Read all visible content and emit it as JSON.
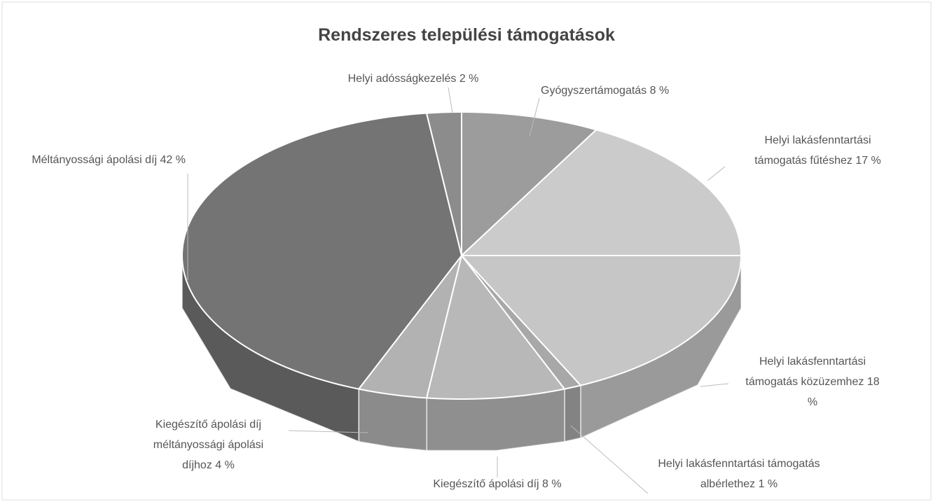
{
  "chart_data": {
    "type": "pie",
    "title": "Rendszeres települési támogatások",
    "categories": [
      "Gyógyszertámogatás",
      "Helyi lakásfenntartási támogatás fűtéshez",
      "Helyi lakásfenntartási támogatás közüzemhez",
      "Helyi lakásfenntartási támogatás albérlethez",
      "Kiegészítő ápolási díj",
      "Kiegészítő ápolási díj méltányossági ápolási díjhoz",
      "Méltányossági ápolási díj",
      "Helyi adósságkezelés"
    ],
    "values": [
      8,
      17,
      18,
      1,
      8,
      4,
      42,
      2
    ],
    "value_labels": [
      "8 %",
      "17 %",
      "18 %",
      "1 %",
      "8 %",
      "4 %",
      "42 %",
      "2 %"
    ],
    "colors": [
      "#9c9c9c",
      "#cbcbcb",
      "#c6c6c6",
      "#a8a8a8",
      "#b8b8b8",
      "#b2b2b2",
      "#747474",
      "#8c8c8c"
    ]
  }
}
